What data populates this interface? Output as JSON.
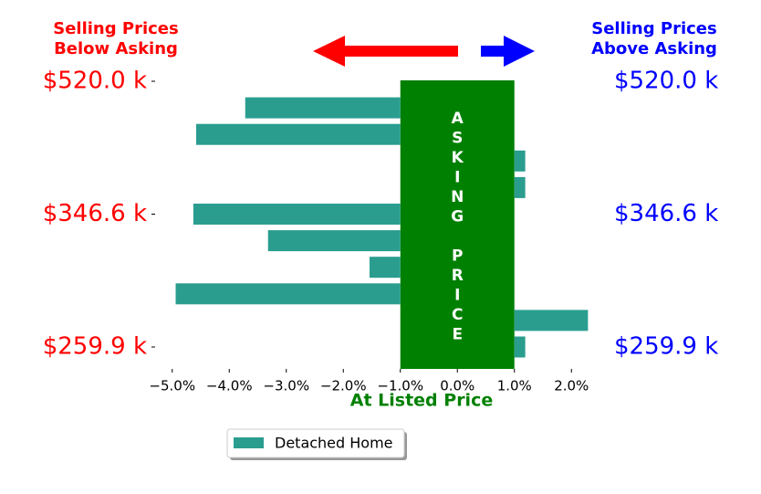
{
  "chart_data": {
    "type": "hbar",
    "left_note": [
      "Selling Prices",
      "Below Asking"
    ],
    "right_note": [
      "Selling Prices",
      "Above Asking"
    ],
    "xlabel": "At Listed Price",
    "categories": [
      "$520.0 k",
      null,
      null,
      null,
      null,
      "$346.6 k",
      null,
      null,
      null,
      null,
      "$259.9 k"
    ],
    "series": [
      {
        "name": "Detached Home",
        "color": "#2a9d8f",
        "values": [
          null,
          -3.72,
          -4.58,
          1.19,
          1.19,
          -4.63,
          -3.32,
          -1.54,
          -4.94,
          2.29,
          1.19
        ]
      }
    ],
    "band": {
      "label": "ASKING PRICE",
      "range": [
        -1,
        1
      ],
      "color": "#008000"
    },
    "xlim": [
      -5.3,
      2.3
    ],
    "xticks": [
      {
        "value": -5,
        "label": "−5.0%"
      },
      {
        "value": -4,
        "label": "−4.0%"
      },
      {
        "value": -3,
        "label": "−3.0%"
      },
      {
        "value": -2,
        "label": "−2.0%"
      },
      {
        "value": -1,
        "label": "−1.0%"
      },
      {
        "value": 0,
        "label": "0.0%"
      },
      {
        "value": 1,
        "label": "1.0%"
      },
      {
        "value": 2,
        "label": "2.0%"
      }
    ],
    "left_label_color": "#ff0000",
    "right_label_color": "#0000ff",
    "legend": "lower center"
  }
}
